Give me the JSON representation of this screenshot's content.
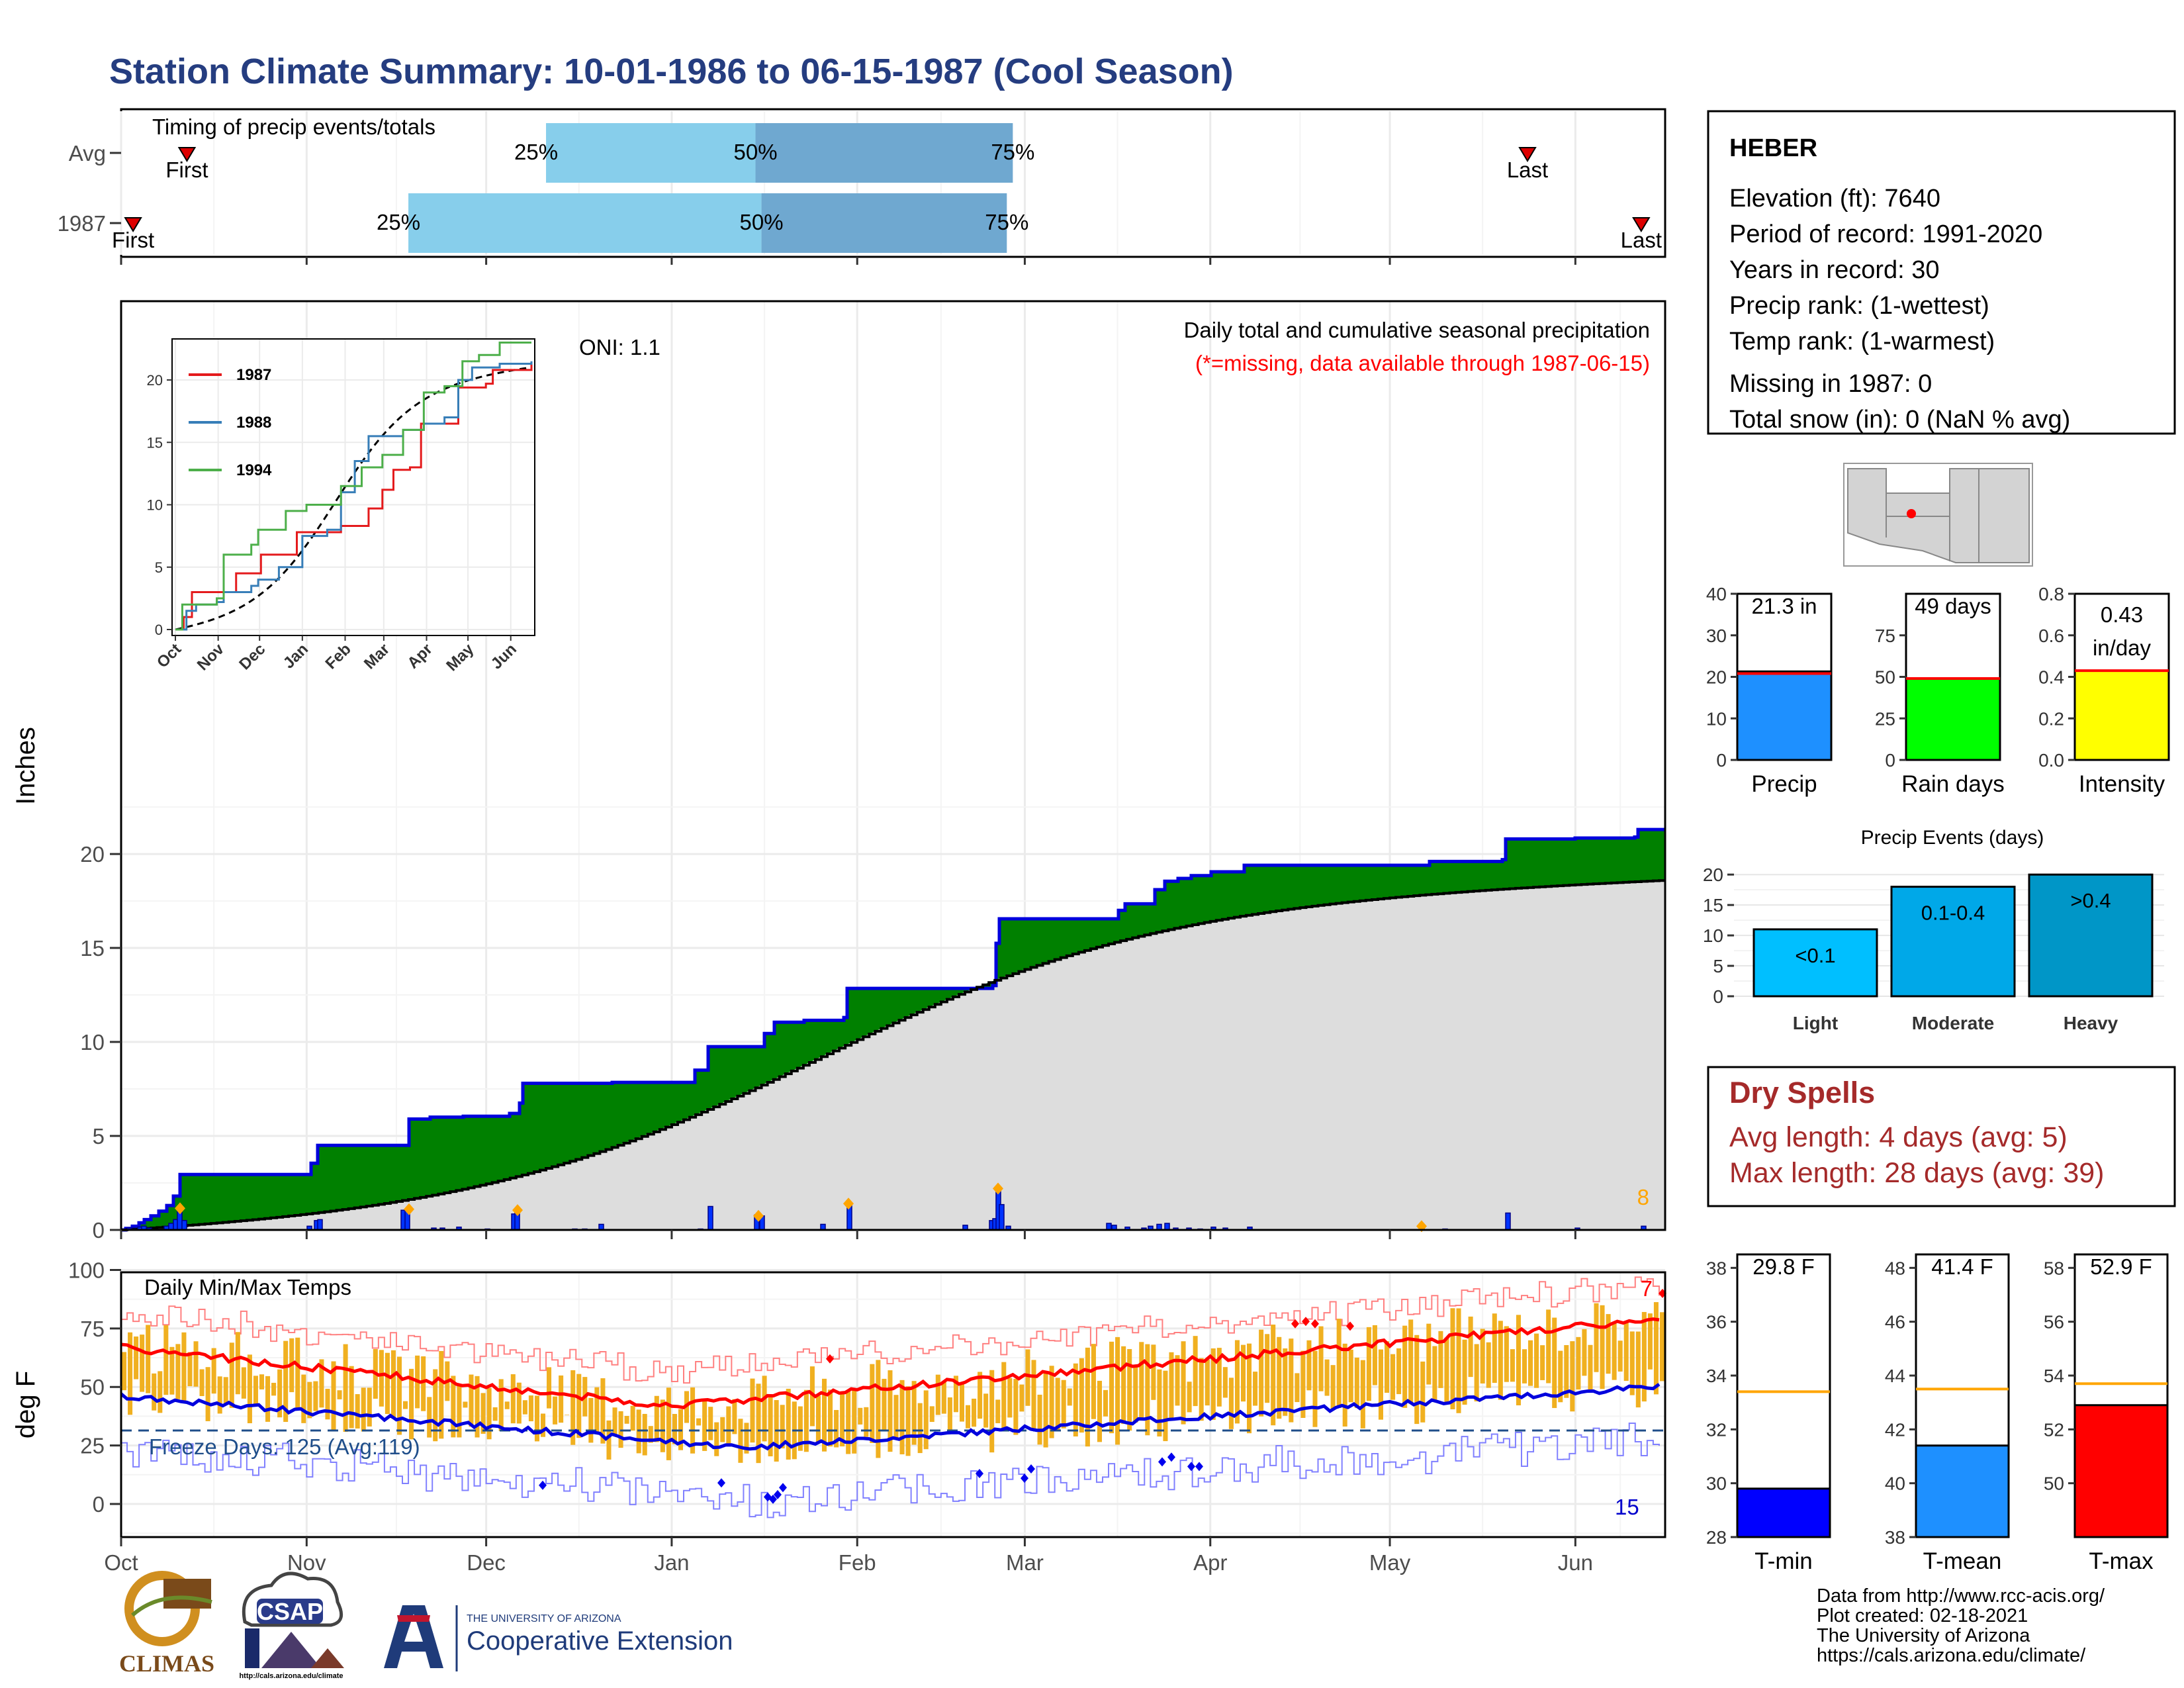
{
  "title": "Station Climate Summary: 10-01-1986 to 06-15-1987 (Cool Season)",
  "months": [
    "Oct",
    "Nov",
    "Dec",
    "Jan",
    "Feb",
    "Mar",
    "Apr",
    "May",
    "Jun"
  ],
  "timing": {
    "label": "Timing of precip events/totals",
    "rows": [
      {
        "name": "Avg",
        "first_label": "First",
        "last_label": "Last",
        "first": "1986-10-12",
        "p25": "1986-12-11",
        "p50": "1987-01-15",
        "p75": "1987-02-27",
        "last": "1987-05-24",
        "q25_label": "25%",
        "q50_label": "50%",
        "q75_label": "75%"
      },
      {
        "name": "1987",
        "first_label": "First",
        "last_label": "Last",
        "first": "1986-10-03",
        "p25": "1986-11-18",
        "p50": "1987-01-16",
        "p75": "1987-02-26",
        "last": "1987-06-12",
        "q25_label": "25%",
        "q50_label": "50%",
        "q75_label": "75%"
      }
    ]
  },
  "precip": {
    "ylabel": "Inches",
    "yticks": [
      0,
      5,
      10,
      15,
      20
    ],
    "oni": "ONI: 1.1",
    "heading": "Daily total and cumulative seasonal precipitation",
    "note": "(*=missing, data available through 1987-06-15)",
    "count_label": "8"
  },
  "inset": {
    "yticks": [
      0,
      5,
      10,
      15,
      20
    ],
    "months": [
      "Oct",
      "Nov",
      "Dec",
      "Jan",
      "Feb",
      "Mar",
      "Apr",
      "May",
      "Jun"
    ],
    "legend": [
      {
        "name": "1987",
        "color": "#e41a1c"
      },
      {
        "name": "1988",
        "color": "#377eb8"
      },
      {
        "name": "1994",
        "color": "#4daf4a"
      }
    ]
  },
  "temps": {
    "ylabel": "deg F",
    "heading": "Daily Min/Max Temps",
    "yticks": [
      0,
      25,
      50,
      75,
      100
    ],
    "freeze": "Freeze Days: 125 (Avg:119)",
    "hot_count": "7",
    "cold_count": "15"
  },
  "station": {
    "name": "HEBER",
    "lines": [
      "Elevation (ft): 7640",
      "Period of record: 1991-2020",
      "Years in record: 30",
      "Precip rank:  (1-wettest)",
      "Temp rank:  (1-warmest)",
      "Missing in 1987: 0",
      "Total snow (in): 0 (NaN % avg)"
    ]
  },
  "mini_bars": [
    {
      "label": "Precip",
      "value_text": "21.3 in",
      "value": 21.3,
      "avg": 20.8,
      "ymax": 40,
      "yticks": [
        0,
        10,
        20,
        30,
        40
      ],
      "color": "#1e90ff"
    },
    {
      "label": "Rain days",
      "value_text": "49 days",
      "value": 49,
      "avg": 49,
      "ymax": 100,
      "yticks": [
        0,
        25,
        50,
        75
      ],
      "color": "#00ff00"
    },
    {
      "label": "Intensity",
      "value_text_1": "0.43",
      "value_text_2": "in/day",
      "value": 0.43,
      "avg": 0.43,
      "ymax": 0.8,
      "yticks": [
        "0.0",
        "0.2",
        "0.4",
        "0.6",
        "0.8"
      ],
      "color": "#ffff00"
    }
  ],
  "events": {
    "title": "Precip Events (days)",
    "yticks": [
      0,
      5,
      10,
      15,
      20
    ],
    "bars": [
      {
        "name": "Light",
        "label": "<0.1",
        "value": 11,
        "color": "#00bfff"
      },
      {
        "name": "Moderate",
        "label": "0.1-0.4",
        "value": 18,
        "color": "#00a8e8"
      },
      {
        "name": "Heavy",
        "label": ">0.4",
        "value": 20,
        "color": "#0096c7"
      }
    ]
  },
  "dry_spells": {
    "title": "Dry Spells",
    "avg": "Avg length: 4 days (avg: 5)",
    "max": "Max length: 28 days (avg: 39)",
    "color": "#a52a2a"
  },
  "temp_bars": [
    {
      "label": "T-min",
      "value_text": "29.8 F",
      "value": 29.8,
      "avg": 33.4,
      "ymin": 28,
      "ymax": 38.5,
      "yticks": [
        28,
        30,
        32,
        34,
        36,
        38
      ],
      "color": "#0000ff"
    },
    {
      "label": "T-mean",
      "value_text": "41.4 F",
      "value": 41.4,
      "avg": 43.5,
      "ymin": 38,
      "ymax": 48.5,
      "yticks": [
        38,
        40,
        42,
        44,
        46,
        48
      ],
      "color": "#1e90ff"
    },
    {
      "label": "T-max",
      "value_text": "52.9 F",
      "value": 52.9,
      "avg": 53.7,
      "ymin": 48,
      "ymax": 58.5,
      "yticks": [
        50,
        52,
        54,
        56,
        58
      ],
      "color": "#ff0000"
    }
  ],
  "logos": {
    "climas": "CLIMAS",
    "csap": "CSAP",
    "csap_url": "http://cals.arizona.edu/climate",
    "ua_top": "THE UNIVERSITY OF ARIZONA",
    "ua_main": "Cooperative Extension"
  },
  "credits": [
    "Data from http://www.rcc-acis.org/",
    "Plot created: 02-18-2021",
    "The University of Arizona",
    "https://cals.arizona.edu/climate/"
  ]
}
